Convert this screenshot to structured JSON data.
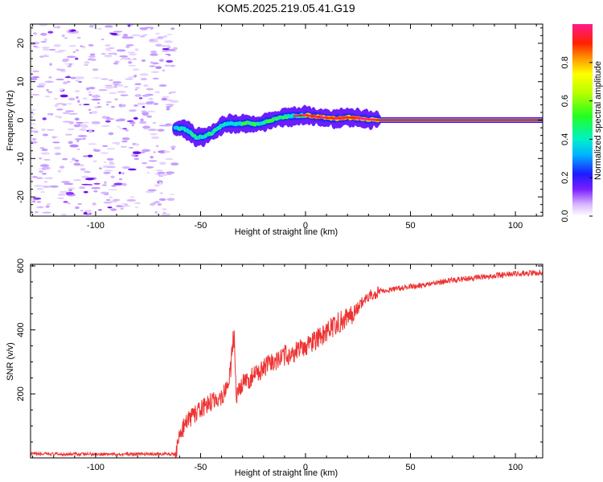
{
  "title": "KOM5.2025.219.05.41.G19",
  "chart_data": [
    {
      "type": "heatmap",
      "name": "spectrogram",
      "xlabel": "Height of straight line (km)",
      "ylabel": "Frequency (Hz)",
      "xlim": [
        -131,
        113
      ],
      "ylim": [
        -25,
        25
      ],
      "xticks": [
        -100,
        -50,
        0,
        50,
        100
      ],
      "yticks": [
        -20,
        -10,
        0,
        10,
        20
      ],
      "trace": {
        "x": [
          -62,
          -58,
          -55,
          -52,
          -48,
          -44,
          -40,
          -36,
          -32,
          -28,
          -24,
          -20,
          -15,
          -10,
          -5,
          0,
          5,
          10,
          15,
          20,
          25,
          30,
          35,
          113
        ],
        "freq": [
          -2,
          -2.3,
          -3.2,
          -4.6,
          -4.2,
          -3.2,
          -1.4,
          -0.8,
          -1.0,
          -0.8,
          -1.1,
          -0.6,
          0.2,
          0.9,
          1.1,
          1.3,
          0.9,
          0.6,
          0.4,
          0.7,
          0.5,
          0.2,
          0.0,
          0.0
        ]
      },
      "noise_region_x": [
        -131,
        -62
      ]
    },
    {
      "type": "colorbar",
      "label": "Normalized spectral amplitude",
      "ticks": [
        "0.0",
        "0.2",
        "0.4",
        "0.6",
        "0.8"
      ],
      "range": [
        0,
        1
      ]
    },
    {
      "type": "line",
      "name": "snr",
      "xlabel": "Height of straight line (km)",
      "ylabel": "SNR (v/v)",
      "xlim": [
        -131,
        113
      ],
      "ylim": [
        0,
        605
      ],
      "xticks": [
        -100,
        -50,
        0,
        50,
        100
      ],
      "yticks": [
        200,
        400,
        600
      ],
      "color": "#ee3333",
      "x": [
        -131,
        -100,
        -80,
        -62,
        -60,
        -57,
        -54,
        -50,
        -45,
        -40,
        -37,
        -35,
        -34,
        -33,
        -32,
        -30,
        -25,
        -20,
        -15,
        -10,
        -5,
        0,
        5,
        10,
        15,
        20,
        25,
        30,
        35,
        40,
        50,
        60,
        70,
        80,
        90,
        100,
        113
      ],
      "y": [
        12,
        12,
        12,
        12,
        70,
        110,
        130,
        150,
        175,
        190,
        230,
        300,
        380,
        180,
        200,
        230,
        255,
        280,
        300,
        320,
        330,
        350,
        370,
        390,
        420,
        440,
        470,
        505,
        520,
        525,
        535,
        545,
        555,
        563,
        570,
        575,
        580
      ]
    }
  ]
}
